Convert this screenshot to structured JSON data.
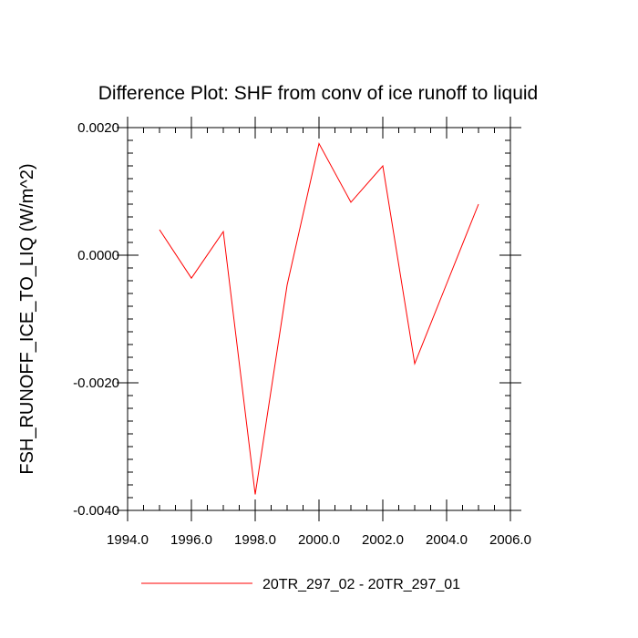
{
  "chart_data": {
    "type": "line",
    "title": "Difference Plot: SHF from conv of ice runoff to liquid",
    "xlabel": "",
    "ylabel": "FSH_RUNOFF_ICE_TO_LIQ  (W/m^2)",
    "xlim": [
      1994.0,
      2006.0
    ],
    "ylim": [
      -0.004,
      0.002
    ],
    "x_ticks": [
      1994,
      1996,
      1998,
      2000,
      2002,
      2004,
      2006
    ],
    "x_tick_labels": [
      "1994.0",
      "1996.0",
      "1998.0",
      "2000.0",
      "2002.0",
      "2004.0",
      "2006.0"
    ],
    "y_ticks": [
      0.002,
      0.0,
      -0.002,
      -0.004
    ],
    "y_tick_labels": [
      "0.0020",
      "0.0000",
      "-0.0020",
      "-0.0040"
    ],
    "grid": false,
    "legend_position": "bottom",
    "series": [
      {
        "name": "20TR_297_02 - 20TR_297_01",
        "color": "#ff0000",
        "x": [
          1995,
          1996,
          1997,
          1998,
          1999,
          2000,
          2001,
          2002,
          2003,
          2004,
          2005
        ],
        "values": [
          0.0004,
          -0.00036,
          0.00037,
          -0.00375,
          -0.00047,
          0.00175,
          0.00083,
          0.0014,
          -0.0017,
          -0.00045,
          0.0008
        ]
      }
    ]
  }
}
